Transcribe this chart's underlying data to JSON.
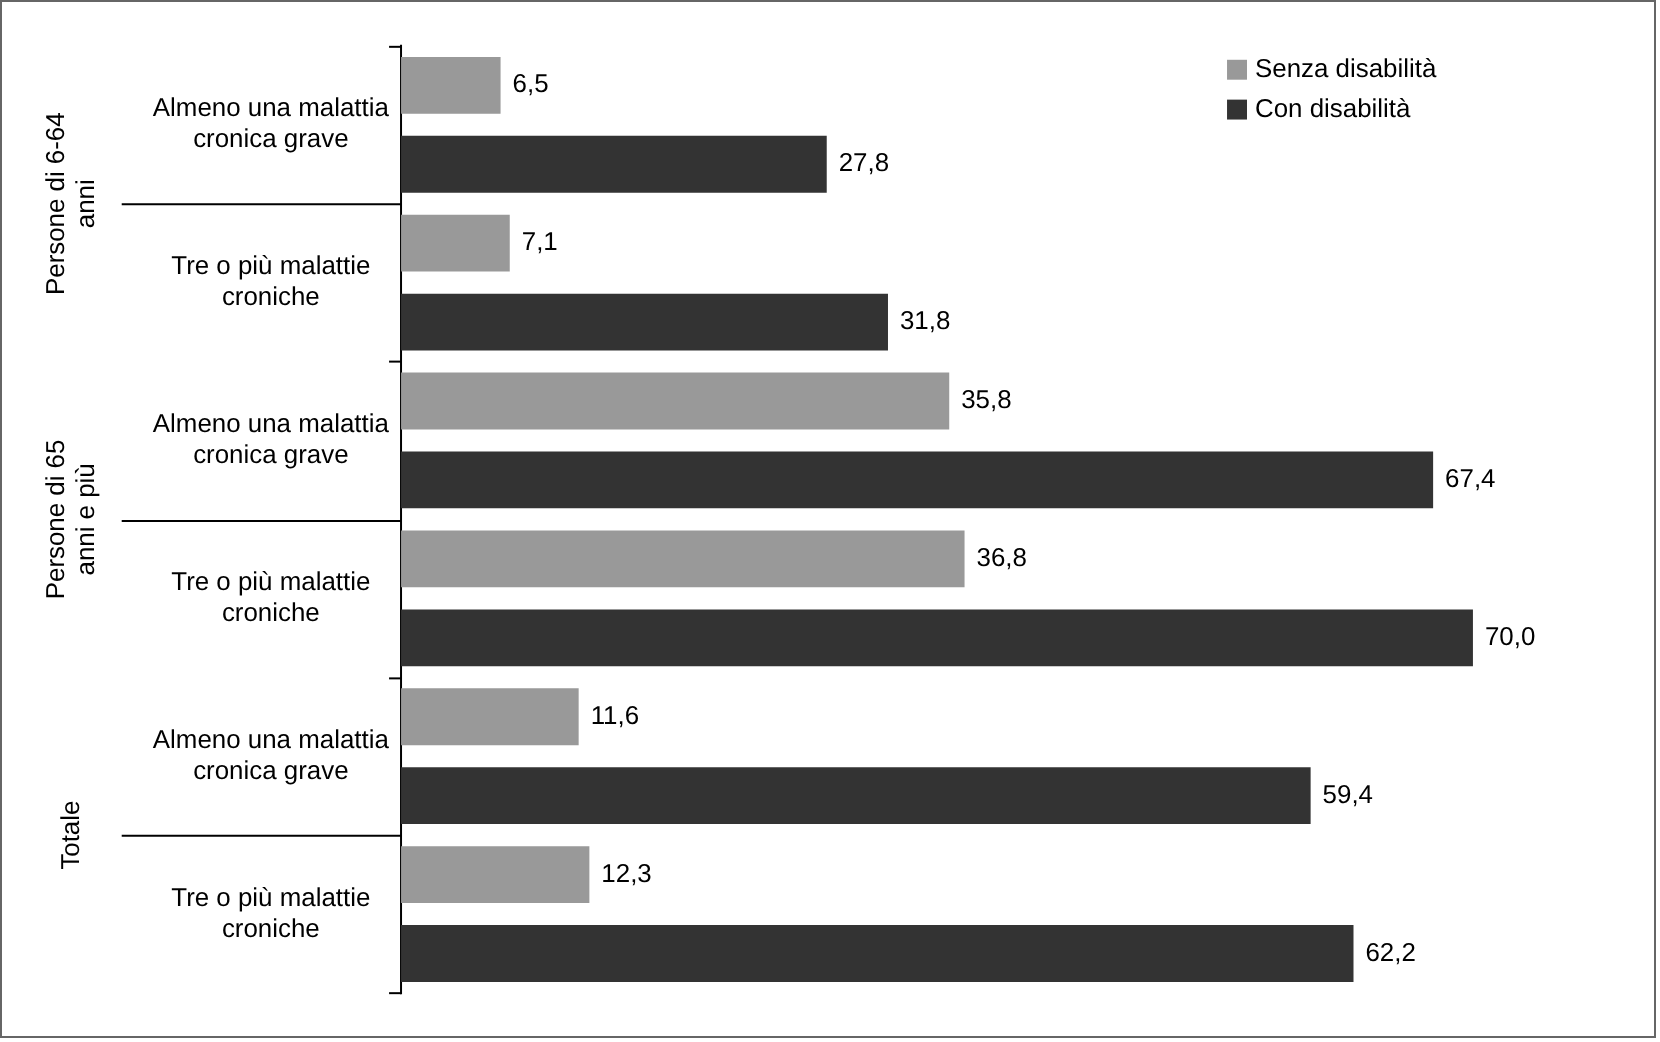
{
  "chart_data": {
    "type": "bar",
    "orientation": "horizontal",
    "categories": [
      "Almeno una malattia cronica grave",
      "Tre o più malattie croniche",
      "Almeno una malattia cronica grave",
      "Tre o più malattie croniche",
      "Almeno una malattia cronica grave",
      "Tre o più malattie croniche"
    ],
    "annotations": [
      "Persone di 6-64 anni",
      "Persone di 65 anni e più",
      "Totale"
    ],
    "series": [
      {
        "name": "Senza disabilità",
        "color": "#999999",
        "values": [
          6.5,
          7.1,
          35.8,
          36.8,
          11.6,
          12.3
        ],
        "value_labels": [
          "6,5",
          "7,1",
          "35,8",
          "36,8",
          "11,6",
          "12,3"
        ]
      },
      {
        "name": "Con disabilità",
        "color": "#333333",
        "values": [
          27.8,
          31.8,
          67.4,
          70.0,
          59.4,
          62.2
        ],
        "value_labels": [
          "27,8",
          "31,8",
          "67,4",
          "70,0",
          "59,4",
          "62,2"
        ]
      }
    ],
    "tick_labels": "y",
    "legend": "top right"
  }
}
